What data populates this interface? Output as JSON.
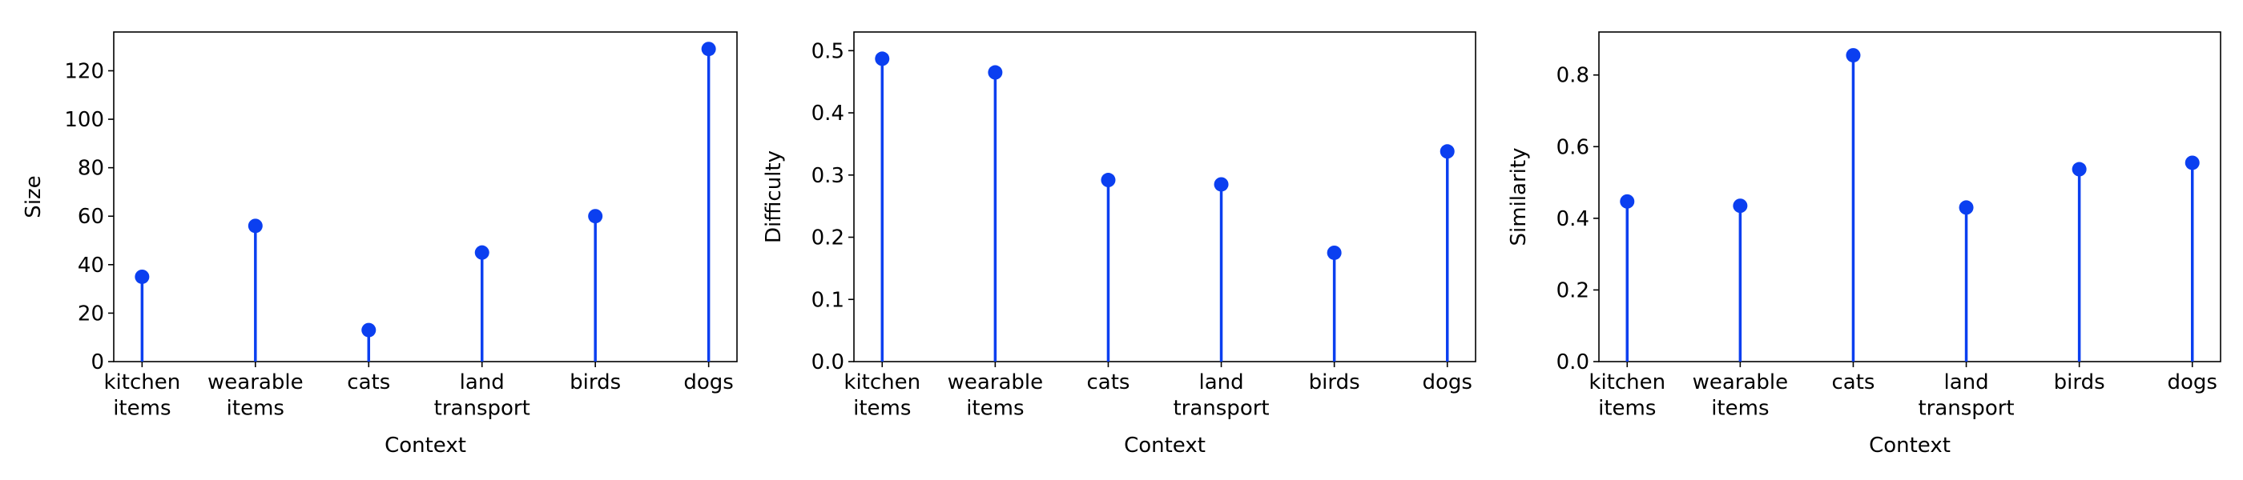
{
  "chart_data": [
    {
      "type": "lollipop",
      "categories": [
        "kitchen\nitems",
        "wearable\nitems",
        "cats",
        "land\ntransport",
        "birds",
        "dogs"
      ],
      "values": [
        35,
        56,
        13,
        45,
        60,
        129
      ],
      "xlabel": "Context",
      "ylabel": "Size",
      "ylim": [
        0,
        136
      ],
      "yticks": [
        0,
        20,
        40,
        60,
        80,
        100,
        120
      ],
      "grid": false,
      "color": "#0b3ff0"
    },
    {
      "type": "lollipop",
      "categories": [
        "kitchen\nitems",
        "wearable\nitems",
        "cats",
        "land\ntransport",
        "birds",
        "dogs"
      ],
      "values": [
        0.487,
        0.465,
        0.292,
        0.285,
        0.175,
        0.338
      ],
      "xlabel": "Context",
      "ylabel": "Difficulty",
      "ylim": [
        0,
        0.53
      ],
      "yticks": [
        0.0,
        0.1,
        0.2,
        0.3,
        0.4,
        0.5
      ],
      "ytick_labels": [
        "0.0",
        "0.1",
        "0.2",
        "0.3",
        "0.4",
        "0.5"
      ],
      "grid": false,
      "color": "#0b3ff0"
    },
    {
      "type": "lollipop",
      "categories": [
        "kitchen\nitems",
        "wearable\nitems",
        "cats",
        "land\ntransport",
        "birds",
        "dogs"
      ],
      "values": [
        0.447,
        0.435,
        0.855,
        0.43,
        0.537,
        0.555
      ],
      "xlabel": "Context",
      "ylabel": "Similarity",
      "ylim": [
        0,
        0.92
      ],
      "yticks": [
        0.0,
        0.2,
        0.4,
        0.6,
        0.8
      ],
      "ytick_labels": [
        "0.0",
        "0.2",
        "0.4",
        "0.6",
        "0.8"
      ],
      "grid": false,
      "color": "#0b3ff0"
    }
  ]
}
